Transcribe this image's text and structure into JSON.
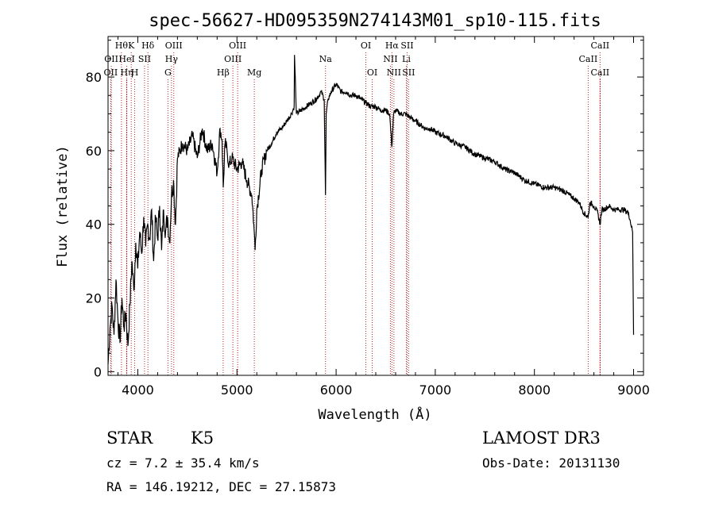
{
  "chart_data": {
    "type": "line",
    "title": "spec-56627-HD095359N274143M01_sp10-115.fits",
    "xlabel": "Wavelength (Å)",
    "ylabel": "Flux (relative)",
    "xlim": [
      3700,
      9100
    ],
    "ylim": [
      -1,
      91
    ],
    "xticks": [
      4000,
      5000,
      6000,
      7000,
      8000,
      9000
    ],
    "yticks": [
      0,
      20,
      40,
      60,
      80
    ],
    "series": [
      {
        "name": "flux",
        "x": [
          3700,
          3720,
          3740,
          3760,
          3780,
          3800,
          3820,
          3840,
          3860,
          3880,
          3900,
          3920,
          3940,
          3960,
          3980,
          4000,
          4020,
          4040,
          4060,
          4080,
          4100,
          4120,
          4140,
          4160,
          4180,
          4200,
          4220,
          4240,
          4260,
          4280,
          4300,
          4320,
          4340,
          4360,
          4380,
          4400,
          4450,
          4500,
          4550,
          4600,
          4650,
          4700,
          4750,
          4800,
          4830,
          4850,
          4862,
          4880,
          4900,
          4920,
          4950,
          5000,
          5050,
          5100,
          5150,
          5170,
          5183,
          5200,
          5250,
          5300,
          5350,
          5400,
          5450,
          5500,
          5550,
          5577,
          5580,
          5600,
          5650,
          5700,
          5750,
          5800,
          5850,
          5880,
          5893,
          5900,
          5920,
          5950,
          6000,
          6050,
          6100,
          6150,
          6200,
          6250,
          6300,
          6350,
          6400,
          6450,
          6500,
          6540,
          6562,
          6580,
          6600,
          6650,
          6700,
          6750,
          6800,
          6850,
          6900,
          6950,
          7000,
          7100,
          7200,
          7300,
          7400,
          7500,
          7600,
          7700,
          7800,
          7900,
          8000,
          8100,
          8200,
          8300,
          8400,
          8450,
          8500,
          8542,
          8560,
          8600,
          8640,
          8662,
          8680,
          8700,
          8750,
          8800,
          8850,
          8900,
          8950,
          8990,
          9000
        ],
        "values": [
          2,
          12,
          18,
          10,
          25,
          14,
          8,
          20,
          12,
          16,
          7,
          18,
          30,
          22,
          35,
          28,
          38,
          32,
          42,
          34,
          40,
          36,
          44,
          30,
          42,
          36,
          45,
          33,
          44,
          38,
          42,
          35,
          48,
          52,
          40,
          58,
          62,
          60,
          64,
          58,
          66,
          60,
          62,
          54,
          66,
          63,
          50,
          62,
          60,
          56,
          58,
          55,
          57,
          52,
          48,
          40,
          33,
          44,
          55,
          60,
          62,
          65,
          66,
          68,
          70,
          72,
          86,
          70,
          71,
          72,
          73,
          74,
          76,
          74,
          48,
          70,
          74,
          76,
          78,
          76,
          76,
          75,
          75,
          74,
          73,
          72,
          72,
          71,
          71,
          70,
          61,
          70,
          71,
          70,
          70,
          69,
          68,
          67,
          66,
          66,
          65,
          64,
          62,
          61,
          59,
          58,
          57,
          55,
          54,
          52,
          51,
          50,
          50,
          49,
          47,
          46,
          43,
          42,
          46,
          45,
          43,
          40,
          44,
          44,
          45,
          44,
          44,
          44,
          43,
          38,
          10
        ]
      }
    ],
    "line_markers": [
      {
        "x": 3835,
        "label": "Hθ",
        "row": 1
      },
      {
        "x": 3733,
        "label": "OII",
        "row": 2
      },
      {
        "x": 3727,
        "label": "OII",
        "row": 3
      },
      {
        "x": 3889,
        "label": "Hη",
        "row": 3
      },
      {
        "x": 3934,
        "label": "K",
        "row": 1
      },
      {
        "x": 3889,
        "label": "HeI",
        "row": 2
      },
      {
        "x": 3969,
        "label": "H",
        "row": 3
      },
      {
        "x": 4102,
        "label": "Hδ",
        "row": 1
      },
      {
        "x": 4068,
        "label": "SII",
        "row": 2
      },
      {
        "x": 4363,
        "label": "OIII",
        "row": 1
      },
      {
        "x": 4340,
        "label": "Hγ",
        "row": 2
      },
      {
        "x": 4304,
        "label": "G",
        "row": 3
      },
      {
        "x": 4861,
        "label": "Hβ",
        "row": 3
      },
      {
        "x": 5007,
        "label": "OIII",
        "row": 1
      },
      {
        "x": 4959,
        "label": "OIII",
        "row": 2
      },
      {
        "x": 5175,
        "label": "Mg",
        "row": 3
      },
      {
        "x": 5893,
        "label": "Na",
        "row": 2
      },
      {
        "x": 6300,
        "label": "OI",
        "row": 1
      },
      {
        "x": 6364,
        "label": "OI",
        "row": 3
      },
      {
        "x": 6563,
        "label": "Hα",
        "row": 1
      },
      {
        "x": 6548,
        "label": "NII",
        "row": 2
      },
      {
        "x": 6583,
        "label": "NII",
        "row": 3
      },
      {
        "x": 6716,
        "label": "SII",
        "row": 1
      },
      {
        "x": 6708,
        "label": "Li",
        "row": 2
      },
      {
        "x": 6731,
        "label": "SII",
        "row": 3
      },
      {
        "x": 8662,
        "label": "CaII",
        "row": 1
      },
      {
        "x": 8542,
        "label": "CaII",
        "row": 2
      },
      {
        "x": 8662,
        "label": "CaII",
        "row": 3
      }
    ]
  },
  "info": {
    "class_label": "STAR",
    "subclass": "K5",
    "survey": "LAMOST DR3",
    "cz": "cz = 7.2 ± 35.4 km/s",
    "obs_date": "Obs-Date: 20131130",
    "radec": "RA = 146.19212, DEC =  27.15873"
  }
}
